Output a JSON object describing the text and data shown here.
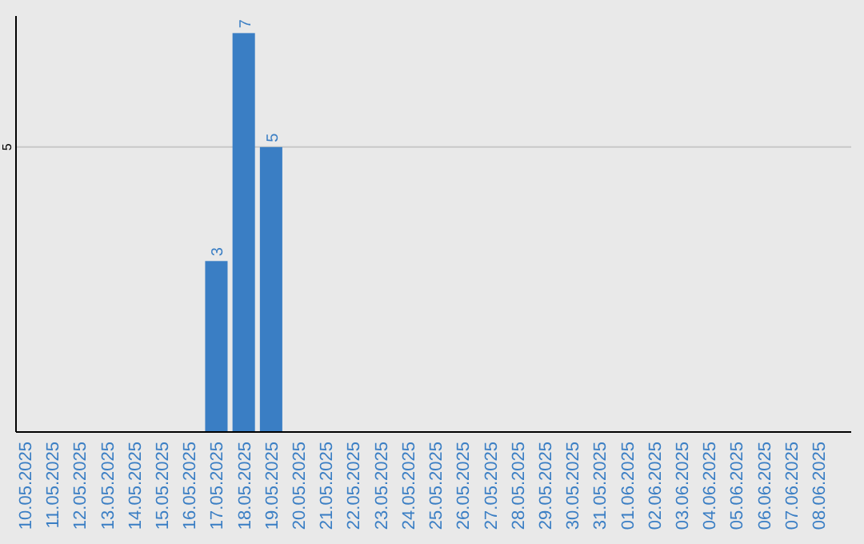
{
  "chart_data": {
    "type": "bar",
    "categories": [
      "10.05.2025",
      "11.05.2025",
      "12.05.2025",
      "13.05.2025",
      "14.05.2025",
      "15.05.2025",
      "16.05.2025",
      "17.05.2025",
      "18.05.2025",
      "19.05.2025",
      "20.05.2025",
      "21.05.2025",
      "22.05.2025",
      "23.05.2025",
      "24.05.2025",
      "25.05.2025",
      "26.05.2025",
      "27.05.2025",
      "28.05.2025",
      "29.05.2025",
      "30.05.2025",
      "31.05.2025",
      "01.06.2025",
      "02.06.2025",
      "03.06.2025",
      "04.06.2025",
      "05.06.2025",
      "06.06.2025",
      "07.06.2025",
      "08.06.2025"
    ],
    "values": [
      null,
      null,
      null,
      null,
      null,
      null,
      null,
      3,
      7,
      5,
      null,
      null,
      null,
      null,
      null,
      null,
      null,
      null,
      null,
      null,
      null,
      null,
      null,
      null,
      null,
      null,
      null,
      null,
      null,
      null
    ],
    "color": "#3a7ec4",
    "ylim": [
      0,
      7.3
    ],
    "yticks": [
      5
    ],
    "grid": "y",
    "data_labels": true
  }
}
